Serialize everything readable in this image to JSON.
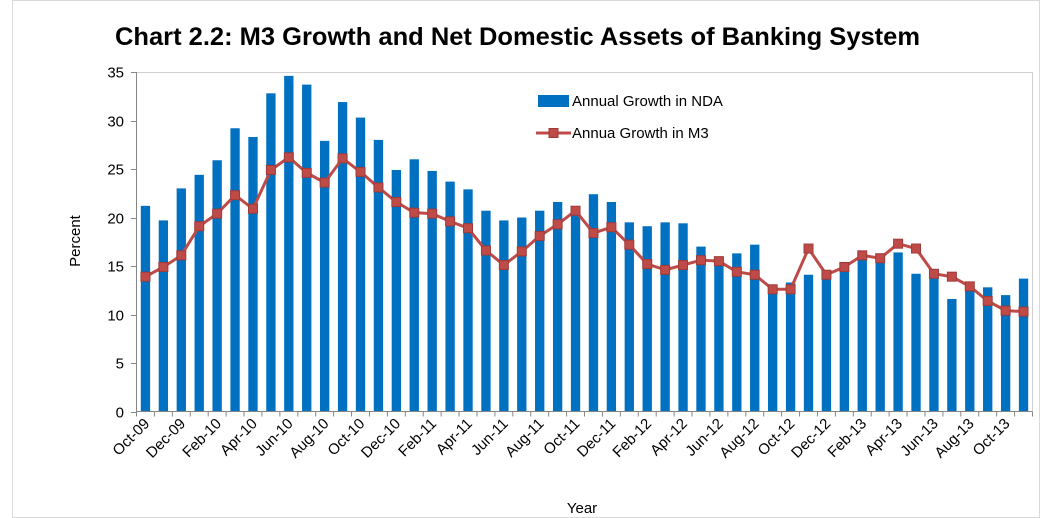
{
  "chart_data": {
    "type": "bar",
    "title": "Chart 2.2: M3 Growth and Net Domestic Assets of Banking System",
    "xlabel": "Year",
    "ylabel": "Percent",
    "ylim": [
      0,
      35
    ],
    "yticks": [
      0,
      5,
      10,
      15,
      20,
      25,
      30,
      35
    ],
    "x_tick_labels": [
      "Oct-09",
      "Dec-09",
      "Feb-10",
      "Apr-10",
      "Jun-10",
      "Aug-10",
      "Oct-10",
      "Dec-10",
      "Feb-11",
      "Apr-11",
      "Jun-11",
      "Aug-11",
      "Oct-11",
      "Dec-11",
      "Feb-12",
      "Apr-12",
      "Jun-12",
      "Aug-12",
      "Oct-12",
      "Dec-12",
      "Feb-13",
      "Apr-13",
      "Jun-13",
      "Aug-13",
      "Oct-13"
    ],
    "grid": false,
    "legend": "inside, top-center",
    "series": [
      {
        "name": "Annual Growth in NDA",
        "type": "bar",
        "color": "#0070C0",
        "values": [
          21.2,
          19.7,
          23.0,
          24.4,
          25.9,
          29.2,
          28.3,
          32.8,
          34.6,
          33.7,
          27.9,
          31.9,
          30.3,
          28.0,
          24.9,
          26.0,
          24.8,
          23.7,
          22.9,
          20.7,
          19.7,
          20.0,
          20.7,
          21.6,
          20.6,
          22.4,
          21.6,
          19.5,
          19.1,
          19.5,
          19.4,
          17.0,
          15.7,
          16.3,
          17.2,
          12.3,
          13.3,
          14.1,
          14.5,
          15.3,
          16.3,
          15.5,
          16.4,
          14.2,
          14.6,
          11.6,
          12.8,
          12.8,
          12.0,
          13.7
        ]
      },
      {
        "name": "Annua Growth in M3",
        "type": "line",
        "marker": "square",
        "color": "#BE4B48",
        "values": [
          13.9,
          14.9,
          16.1,
          19.1,
          20.4,
          22.3,
          20.9,
          24.9,
          26.2,
          24.6,
          23.6,
          26.1,
          24.7,
          23.1,
          21.6,
          20.5,
          20.4,
          19.6,
          18.9,
          16.6,
          15.1,
          16.5,
          18.1,
          19.3,
          20.7,
          18.4,
          19.0,
          17.2,
          15.2,
          14.6,
          15.1,
          15.6,
          15.5,
          14.4,
          14.1,
          12.6,
          12.6,
          16.8,
          14.1,
          14.9,
          16.1,
          15.8,
          17.3,
          16.8,
          14.2,
          13.9,
          12.9,
          11.4,
          10.4,
          10.3
        ]
      }
    ]
  }
}
